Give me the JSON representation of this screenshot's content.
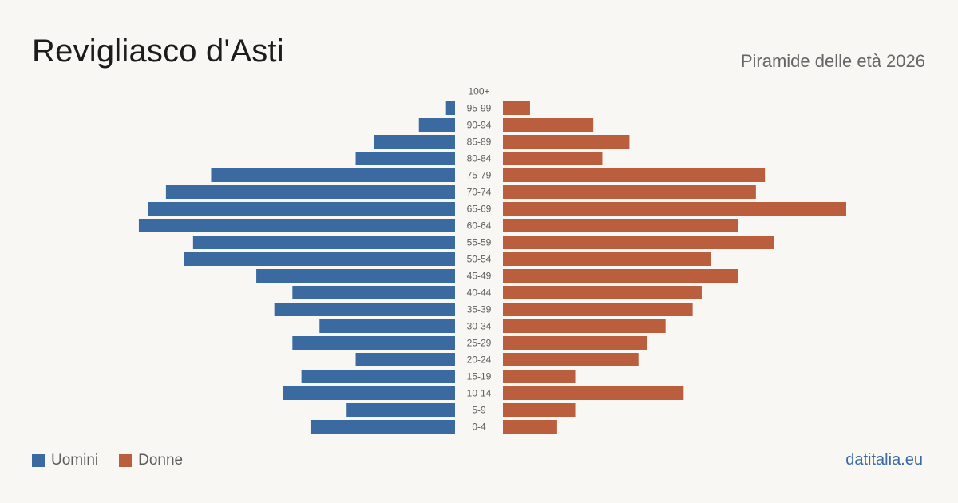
{
  "header": {
    "title": "Revigliasco d'Asti",
    "subtitle": "Piramide delle età 2026"
  },
  "colors": {
    "male": "#3a6a9f",
    "female": "#bb5e3e",
    "age_label": "#5e5e5e",
    "background": "#f9f7f3"
  },
  "legend": {
    "male_label": "Uomini",
    "female_label": "Donne"
  },
  "brand": {
    "text": "datitalia.eu"
  },
  "chart_data": {
    "type": "bar",
    "orientation": "horizontal-population-pyramid",
    "title": "Piramide delle età 2026",
    "categories": [
      "100+",
      "95-99",
      "90-94",
      "85-89",
      "80-84",
      "75-79",
      "70-74",
      "65-69",
      "60-64",
      "55-59",
      "50-54",
      "45-49",
      "40-44",
      "35-39",
      "30-34",
      "25-29",
      "20-24",
      "15-19",
      "10-14",
      "5-9",
      "0-4"
    ],
    "series": [
      {
        "name": "Uomini",
        "side": "left",
        "values": [
          0,
          1,
          4,
          9,
          11,
          27,
          32,
          34,
          35,
          29,
          30,
          22,
          18,
          20,
          15,
          18,
          11,
          17,
          19,
          12,
          16
        ]
      },
      {
        "name": "Donne",
        "side": "right",
        "values": [
          0,
          3,
          10,
          14,
          11,
          29,
          28,
          38,
          26,
          30,
          23,
          26,
          22,
          21,
          18,
          16,
          15,
          8,
          20,
          8,
          6
        ]
      }
    ],
    "axis_max": 38,
    "grid": false,
    "legend_position": "bottom-left"
  }
}
